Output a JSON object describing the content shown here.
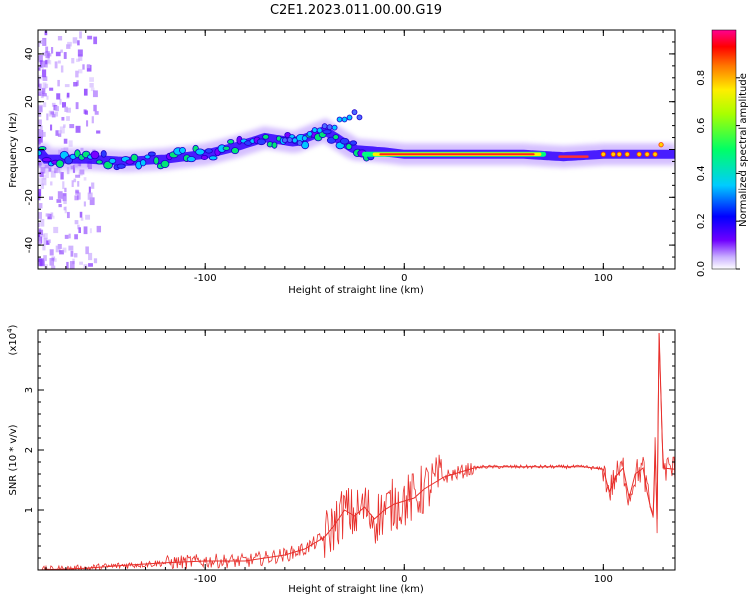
{
  "title": "C2E1.2023.011.00.00.G19",
  "chart_data": [
    {
      "type": "heatmap",
      "xlabel": "Height of straight line (km)",
      "ylabel": "Frequency (Hz)",
      "xlim": [
        -184,
        136
      ],
      "ylim": [
        -50,
        50
      ],
      "xticks": [
        -100,
        0,
        100
      ],
      "yticks": [
        -40,
        -20,
        0,
        20,
        40
      ],
      "colorbar": {
        "label": "Normalized spectral amplitude",
        "range": [
          0,
          1
        ],
        "ticks": [
          "0.0",
          "0.2",
          "0.4",
          "0.6",
          "0.8"
        ],
        "colors": [
          "#ffffff",
          "#6f00ff",
          "#0000ff",
          "#00ffff",
          "#00ff00",
          "#ffff00",
          "#ff0000",
          "#ff0090"
        ]
      },
      "ridge": [
        {
          "x": -180,
          "y": -4
        },
        {
          "x": -160,
          "y": -4
        },
        {
          "x": -140,
          "y": -5
        },
        {
          "x": -120,
          "y": -4
        },
        {
          "x": -100,
          "y": -2
        },
        {
          "x": -85,
          "y": 1
        },
        {
          "x": -70,
          "y": 5
        },
        {
          "x": -55,
          "y": 3
        },
        {
          "x": -40,
          "y": 8
        },
        {
          "x": -25,
          "y": 0
        },
        {
          "x": -10,
          "y": -1
        },
        {
          "x": 0,
          "y": -2
        },
        {
          "x": 20,
          "y": -2
        },
        {
          "x": 40,
          "y": -2
        },
        {
          "x": 60,
          "y": -2
        },
        {
          "x": 80,
          "y": -3
        },
        {
          "x": 100,
          "y": -2
        },
        {
          "x": 120,
          "y": -2
        },
        {
          "x": 136,
          "y": -2
        }
      ]
    },
    {
      "type": "line",
      "xlabel": "Height of straight line (km)",
      "ylabel": "SNR (10 * v/v)",
      "y_multiplier": "(x10",
      "y_multiplier_exp": "4",
      "y_multiplier_close": ")",
      "xlim": [
        -184,
        136
      ],
      "ylim": [
        0,
        4
      ],
      "xticks": [
        -100,
        0,
        100
      ],
      "yticks": [
        1,
        2,
        3
      ],
      "color": "#e8302c",
      "x": [
        -184,
        -160,
        -140,
        -120,
        -100,
        -90,
        -80,
        -70,
        -60,
        -50,
        -40,
        -35,
        -30,
        -25,
        -20,
        -15,
        -10,
        -5,
        0,
        5,
        10,
        15,
        20,
        25,
        30,
        35,
        40,
        50,
        60,
        70,
        80,
        90,
        95,
        100,
        103,
        106,
        110,
        113,
        116,
        120,
        122,
        124,
        125,
        126,
        127,
        128,
        130,
        136
      ],
      "y": [
        0.0,
        0.03,
        0.08,
        0.12,
        0.15,
        0.15,
        0.15,
        0.2,
        0.25,
        0.35,
        0.55,
        0.75,
        1.0,
        0.9,
        1.05,
        0.85,
        1.0,
        1.1,
        1.15,
        1.2,
        1.35,
        1.45,
        1.55,
        1.6,
        1.65,
        1.7,
        1.72,
        1.72,
        1.72,
        1.72,
        1.72,
        1.72,
        1.7,
        1.68,
        1.3,
        1.55,
        1.7,
        1.2,
        1.6,
        1.7,
        1.3,
        1.0,
        0.9,
        2.0,
        0.85,
        3.95,
        1.7,
        1.68
      ]
    }
  ]
}
